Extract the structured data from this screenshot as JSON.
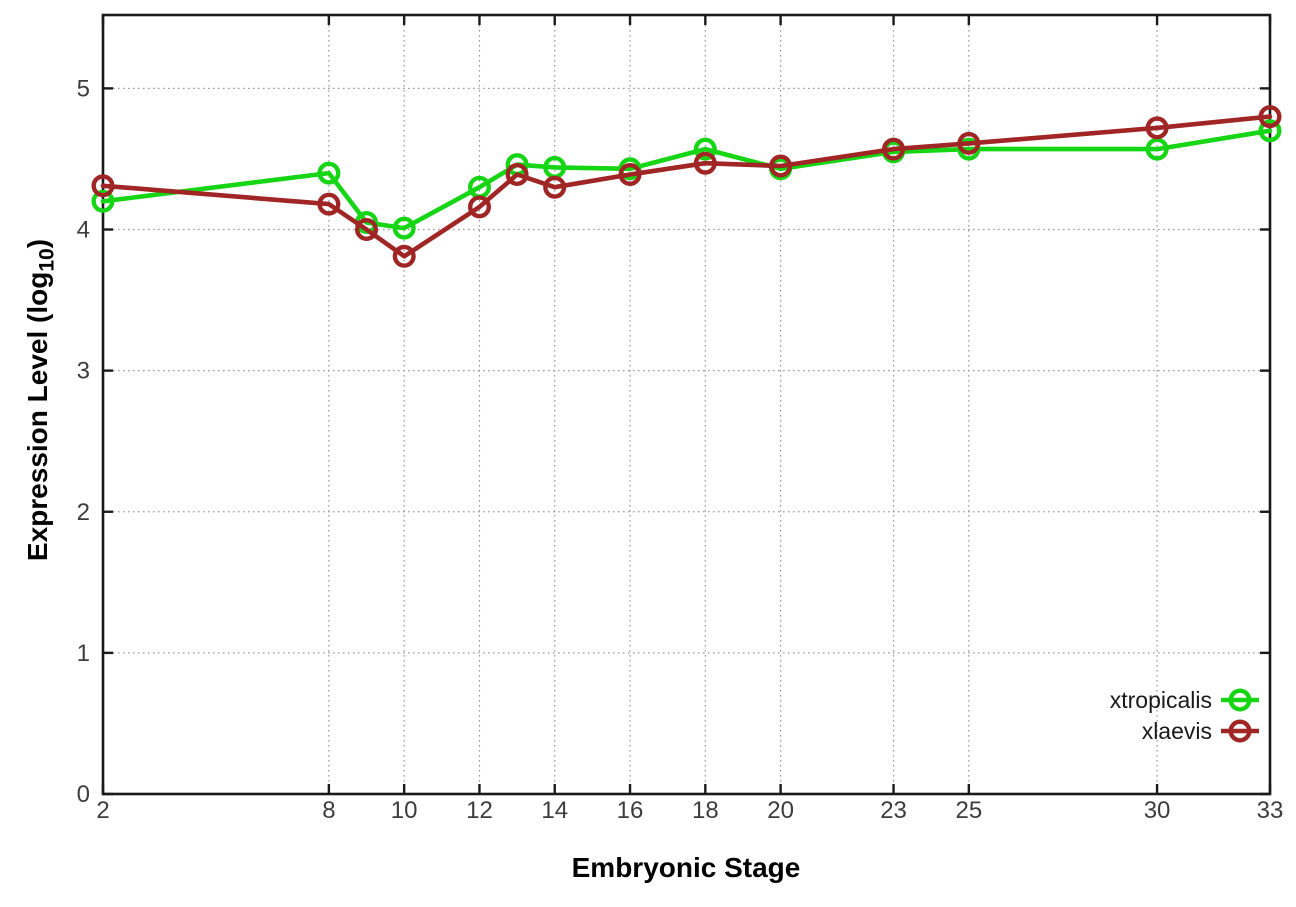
{
  "chart_data": {
    "type": "line",
    "title": "",
    "xlabel": "Embryonic Stage",
    "ylabel": "Expression Level (log10)",
    "ylabel_parts": {
      "pre": "Expression Level (log",
      "sub": "10",
      "post": ")"
    },
    "x": [
      2,
      8,
      9,
      10,
      12,
      13,
      14,
      16,
      18,
      20,
      23,
      25,
      30,
      33
    ],
    "series": [
      {
        "name": "xtropicalis",
        "color": "#15d515",
        "marker": "open-circle",
        "values": [
          4.2,
          4.4,
          4.05,
          4.01,
          4.3,
          4.46,
          4.44,
          4.43,
          4.57,
          4.43,
          4.55,
          4.57,
          4.57,
          4.7
        ]
      },
      {
        "name": "xlaevis",
        "color": "#a02525",
        "marker": "open-circle",
        "values": [
          4.31,
          4.18,
          4.0,
          3.81,
          4.16,
          4.39,
          4.3,
          4.39,
          4.47,
          4.45,
          4.57,
          4.61,
          4.72,
          4.8
        ]
      }
    ],
    "xticks": [
      2,
      8,
      10,
      12,
      14,
      16,
      18,
      20,
      23,
      25,
      30,
      33
    ],
    "yticks": [
      0,
      1,
      2,
      3,
      4,
      5
    ],
    "xlim": [
      2,
      33
    ],
    "ylim": [
      0,
      5.52
    ],
    "grid": true,
    "legend_position": "inside-bottom-right",
    "colors": {
      "axis": "#1a1a1a",
      "tick_label": "#3d3d3d",
      "grid": "#9a9a9a",
      "legend_text": "#1a1a1a",
      "background": "#ffffff"
    }
  }
}
